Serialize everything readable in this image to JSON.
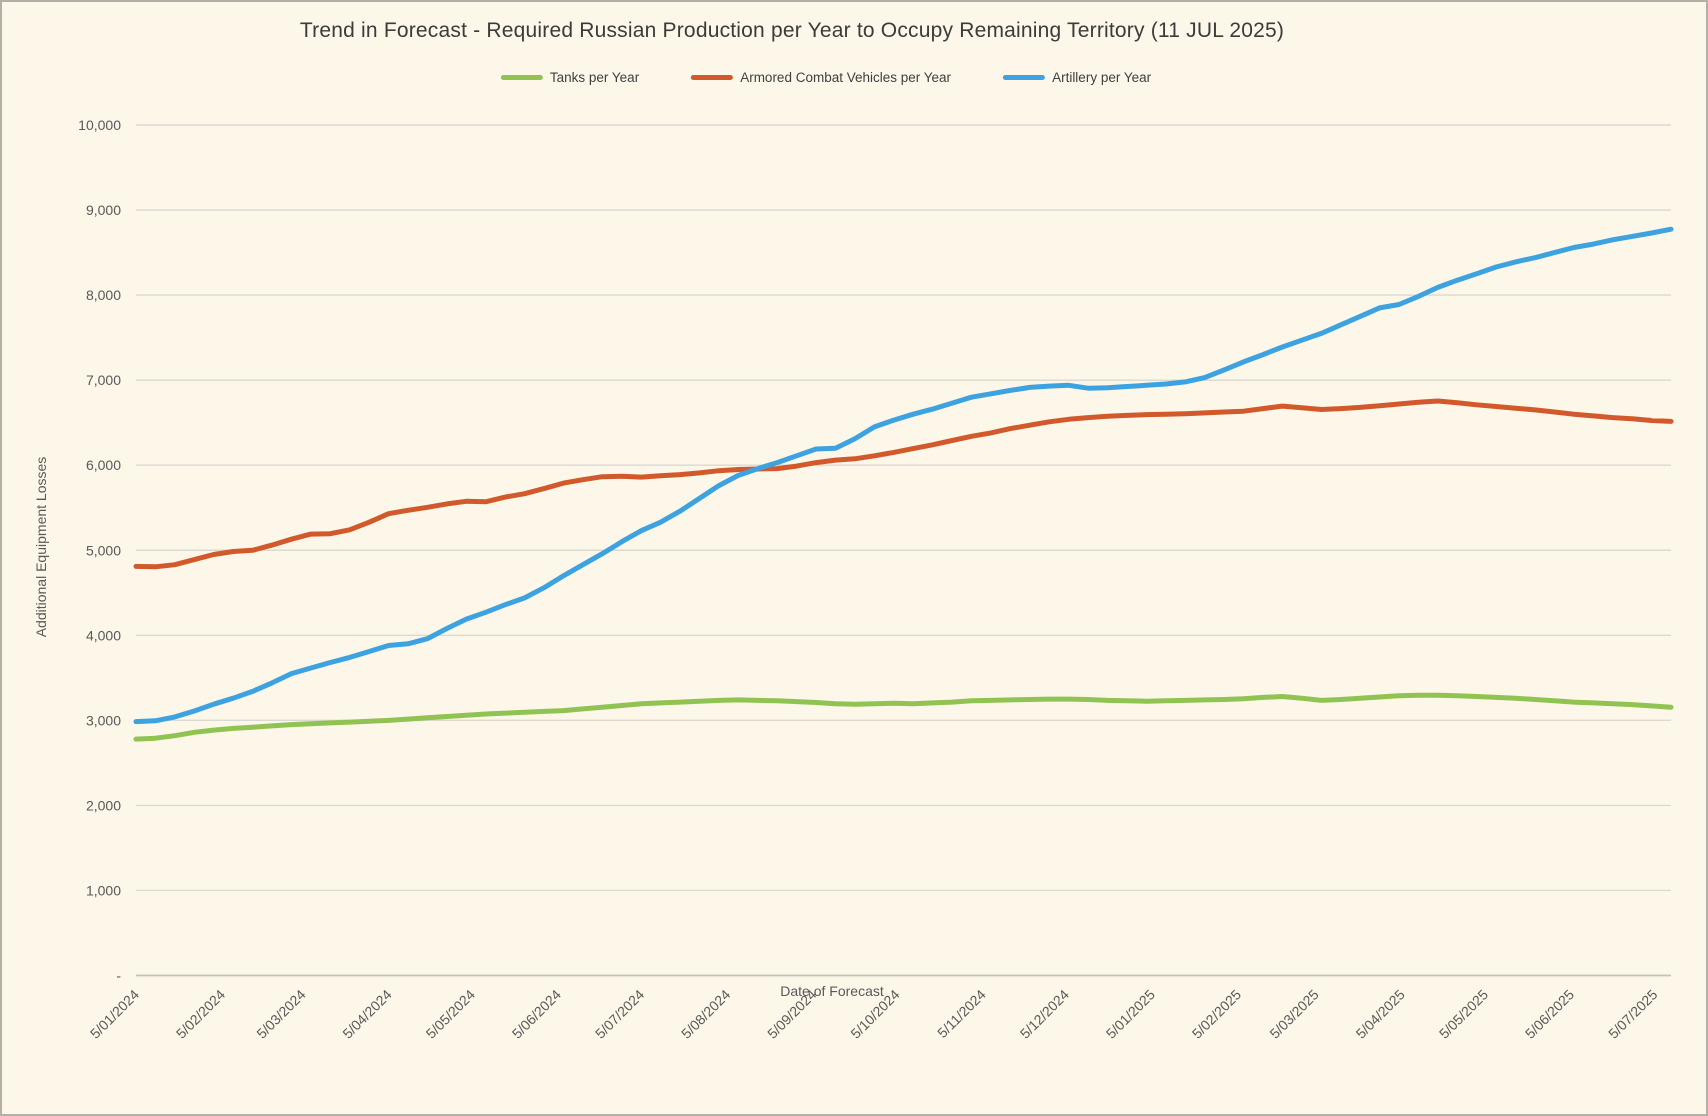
{
  "title": "Trend in Forecast - Required Russian Production per Year to Occupy Remaining Territory (11 JUL 2025)",
  "legend": {
    "items": [
      {
        "label": "Tanks per Year",
        "color": "#91C353"
      },
      {
        "label": "Armored Combat Vehicles per Year",
        "color": "#D2592B"
      },
      {
        "label": "Artillery per Year",
        "color": "#3DA2E0"
      }
    ]
  },
  "axes": {
    "y": {
      "title": "Additional Equipment Losses",
      "ticks": [
        {
          "label": "10,000",
          "value": 10000
        },
        {
          "label": "9,000",
          "value": 9000
        },
        {
          "label": "8,000",
          "value": 8000
        },
        {
          "label": "7,000",
          "value": 7000
        },
        {
          "label": "6,000",
          "value": 6000
        },
        {
          "label": "5,000",
          "value": 5000
        },
        {
          "label": "4,000",
          "value": 4000
        },
        {
          "label": "3,000",
          "value": 3000
        },
        {
          "label": "2,000",
          "value": 2000
        },
        {
          "label": "1,000",
          "value": 1000
        },
        {
          "label": "-",
          "value": 0
        }
      ]
    },
    "x": {
      "title": "Date of Forecast",
      "ticks": [
        {
          "label": "5/01/2024",
          "date": "2024-01-05"
        },
        {
          "label": "5/02/2024",
          "date": "2024-02-05"
        },
        {
          "label": "5/03/2024",
          "date": "2024-03-05"
        },
        {
          "label": "5/04/2024",
          "date": "2024-04-05"
        },
        {
          "label": "5/05/2024",
          "date": "2024-05-05"
        },
        {
          "label": "5/06/2024",
          "date": "2024-06-05"
        },
        {
          "label": "5/07/2024",
          "date": "2024-07-05"
        },
        {
          "label": "5/08/2024",
          "date": "2024-08-05"
        },
        {
          "label": "5/09/2024",
          "date": "2024-09-05"
        },
        {
          "label": "5/10/2024",
          "date": "2024-10-05"
        },
        {
          "label": "5/11/2024",
          "date": "2024-11-05"
        },
        {
          "label": "5/12/2024",
          "date": "2024-12-05"
        },
        {
          "label": "5/01/2025",
          "date": "2025-01-05"
        },
        {
          "label": "5/02/2025",
          "date": "2025-02-05"
        },
        {
          "label": "5/03/2025",
          "date": "2025-03-05"
        },
        {
          "label": "5/04/2025",
          "date": "2025-04-05"
        },
        {
          "label": "5/05/2025",
          "date": "2025-05-05"
        },
        {
          "label": "5/06/2025",
          "date": "2025-06-05"
        },
        {
          "label": "5/07/2025",
          "date": "2025-07-05"
        }
      ]
    }
  },
  "chart_data": {
    "type": "line",
    "title": "Trend in Forecast - Required Russian Production per Year to Occupy Remaining Territory (11 JUL 2025)",
    "xlabel": "Date of Forecast",
    "ylabel": "Additional Equipment Losses",
    "ylim": [
      0,
      10000
    ],
    "grid": "horizontal",
    "legend_position": "top",
    "x_origin": "2024-01-05",
    "x_end": "2025-07-11",
    "interval_days": 7,
    "series": [
      {
        "name": "Tanks per Year",
        "color": "#91C353",
        "values": [
          2780,
          2790,
          2820,
          2860,
          2885,
          2905,
          2920,
          2935,
          2950,
          2960,
          2970,
          2980,
          2990,
          3000,
          3015,
          3030,
          3045,
          3060,
          3075,
          3085,
          3095,
          3105,
          3115,
          3135,
          3155,
          3175,
          3195,
          3205,
          3215,
          3225,
          3235,
          3240,
          3235,
          3230,
          3220,
          3210,
          3195,
          3190,
          3195,
          3200,
          3195,
          3205,
          3215,
          3230,
          3235,
          3240,
          3245,
          3250,
          3250,
          3245,
          3235,
          3230,
          3225,
          3230,
          3235,
          3240,
          3245,
          3255,
          3270,
          3280,
          3260,
          3235,
          3245,
          3260,
          3275,
          3290,
          3295,
          3295,
          3290,
          3280,
          3270,
          3260,
          3245,
          3230,
          3215,
          3205,
          3195,
          3185,
          3170,
          3155
        ]
      },
      {
        "name": "Armored Combat Vehicles per Year",
        "color": "#D2592B",
        "values": [
          4810,
          4805,
          4830,
          4890,
          4950,
          4985,
          5000,
          5060,
          5130,
          5190,
          5195,
          5240,
          5330,
          5430,
          5470,
          5505,
          5545,
          5575,
          5570,
          5625,
          5665,
          5725,
          5790,
          5830,
          5865,
          5870,
          5860,
          5875,
          5890,
          5910,
          5935,
          5950,
          5955,
          5960,
          5990,
          6030,
          6060,
          6075,
          6110,
          6150,
          6195,
          6240,
          6290,
          6340,
          6380,
          6430,
          6470,
          6510,
          6540,
          6560,
          6575,
          6585,
          6595,
          6600,
          6605,
          6615,
          6625,
          6635,
          6665,
          6695,
          6675,
          6655,
          6665,
          6680,
          6700,
          6720,
          6740,
          6755,
          6735,
          6710,
          6690,
          6670,
          6650,
          6625,
          6600,
          6580,
          6560,
          6545,
          6525,
          6515
        ]
      },
      {
        "name": "Artillery per Year",
        "color": "#3DA2E0",
        "values": [
          2985,
          2995,
          3040,
          3110,
          3190,
          3260,
          3340,
          3440,
          3550,
          3615,
          3680,
          3740,
          3810,
          3880,
          3900,
          3960,
          4080,
          4190,
          4270,
          4360,
          4440,
          4560,
          4700,
          4830,
          4960,
          5100,
          5230,
          5330,
          5460,
          5610,
          5760,
          5880,
          5960,
          6030,
          6110,
          6190,
          6200,
          6310,
          6450,
          6530,
          6600,
          6660,
          6730,
          6800,
          6840,
          6880,
          6915,
          6930,
          6940,
          6905,
          6910,
          6925,
          6940,
          6955,
          6980,
          7030,
          7120,
          7215,
          7300,
          7390,
          7470,
          7550,
          7650,
          7750,
          7850,
          7890,
          7985,
          8090,
          8175,
          8250,
          8330,
          8390,
          8440,
          8500,
          8560,
          8600,
          8650,
          8690,
          8730,
          8775
        ]
      }
    ]
  }
}
